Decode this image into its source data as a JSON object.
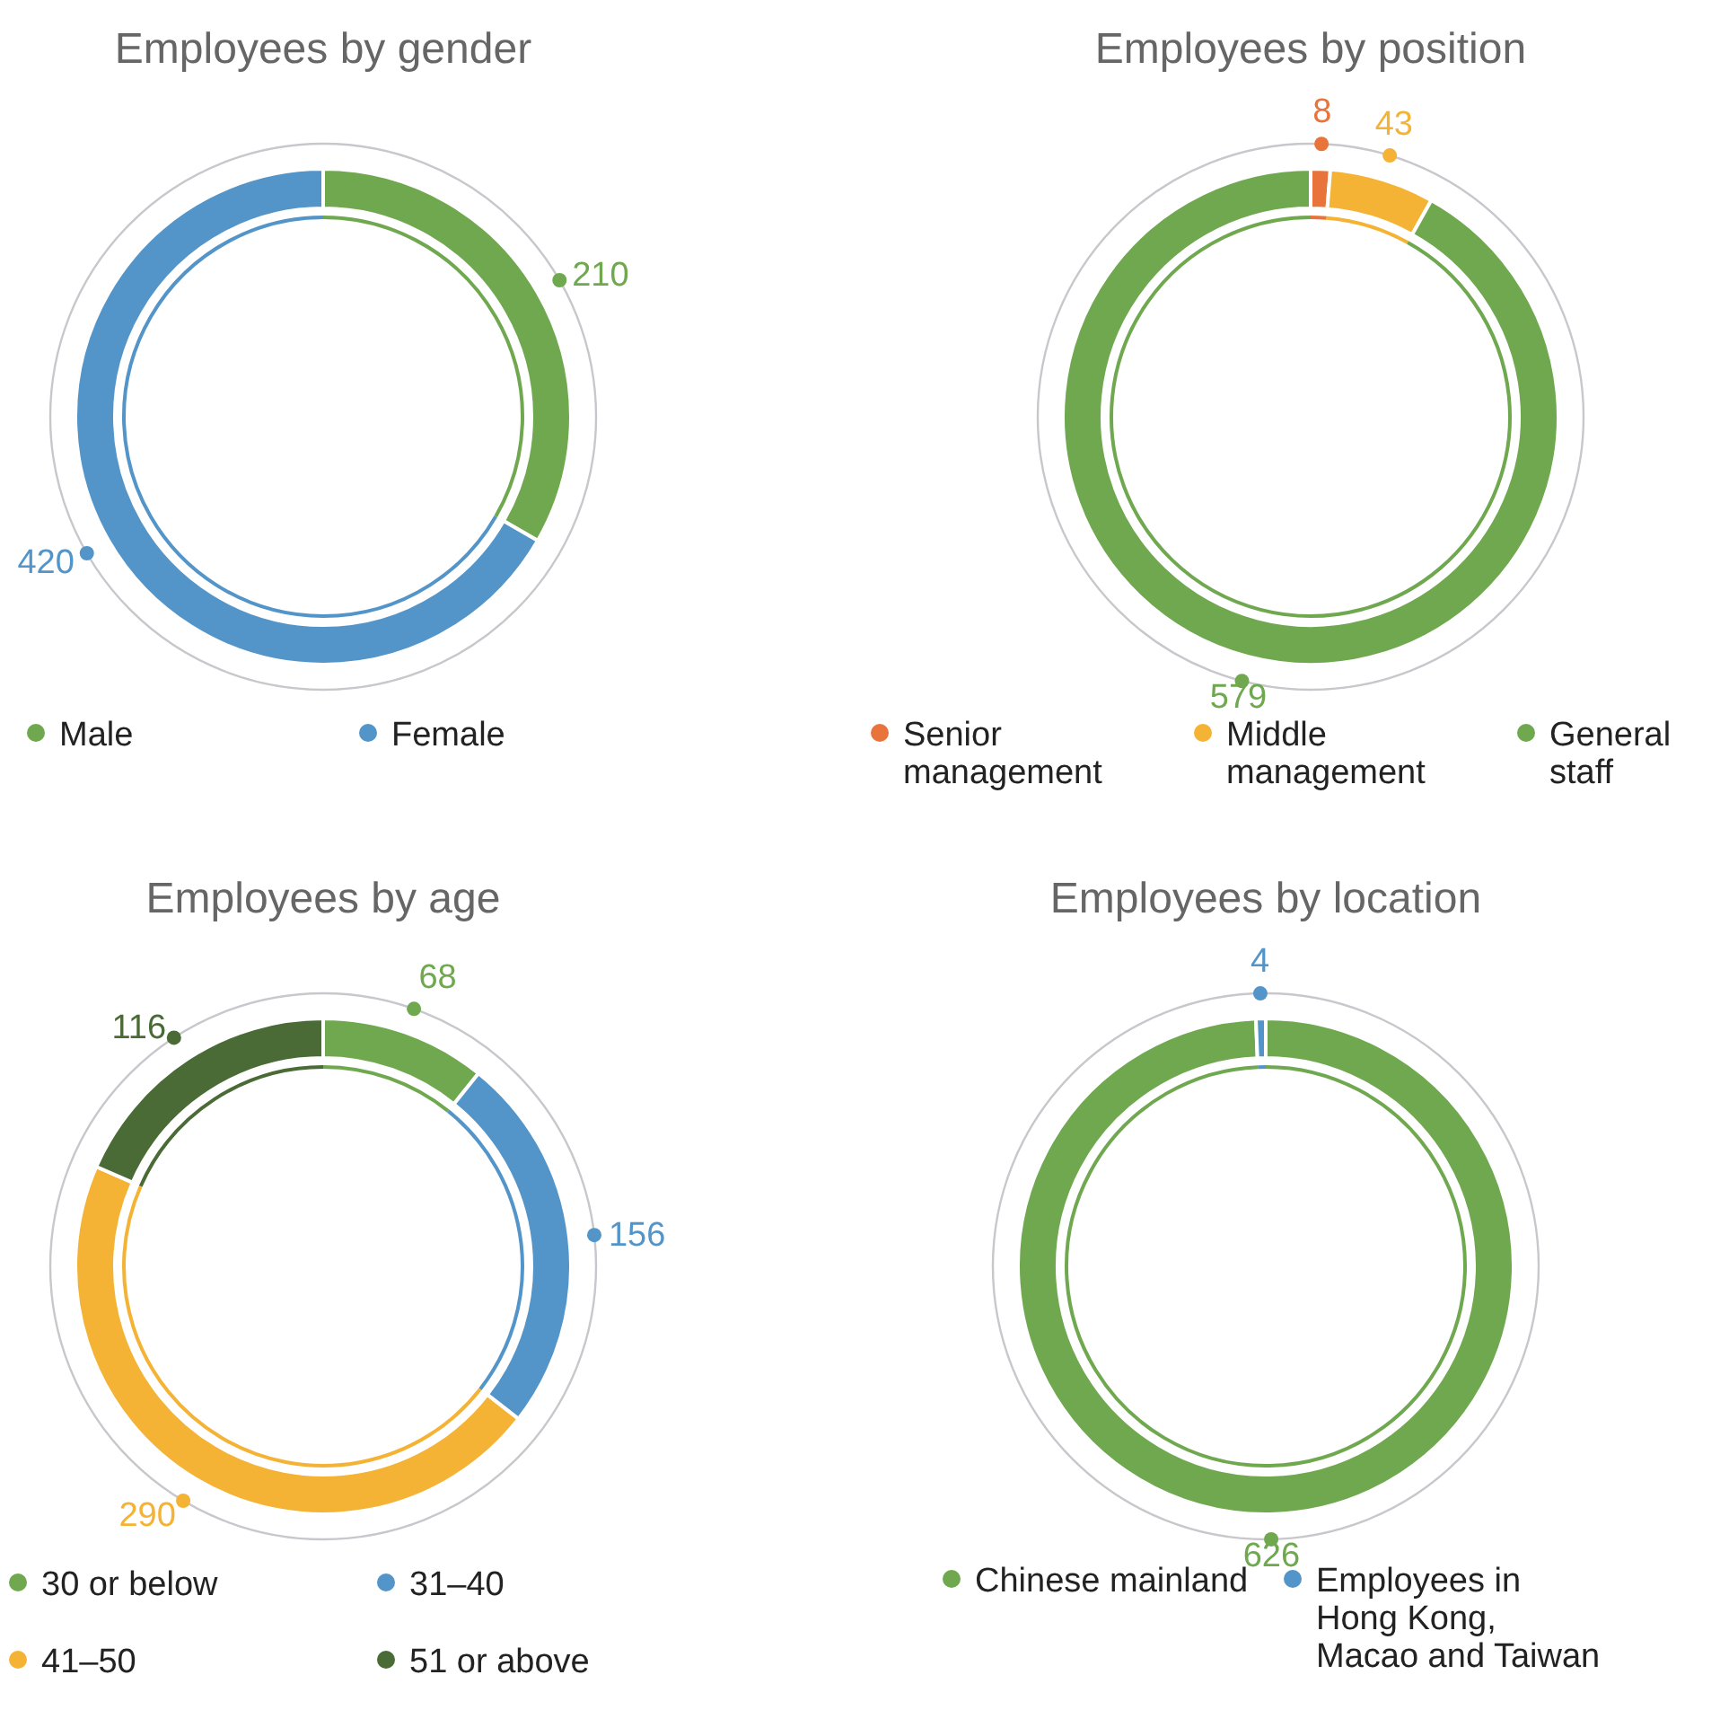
{
  "chart_data": [
    {
      "type": "donut",
      "title": "Employees by gender",
      "categories": [
        "Male",
        "Female"
      ],
      "values": [
        210,
        420
      ],
      "colors": [
        "#70a850",
        "#5495c9"
      ],
      "data_labels": true,
      "legend": "bottom"
    },
    {
      "type": "donut",
      "title": "Employees by position",
      "categories": [
        "Senior management",
        "Middle management",
        "General staff"
      ],
      "values": [
        8,
        43,
        579
      ],
      "colors": [
        "#e8743b",
        "#f5b335",
        "#70a850"
      ],
      "data_labels": true,
      "legend": "bottom"
    },
    {
      "type": "donut",
      "title": "Employees by age",
      "categories": [
        "30 or below",
        "31–40",
        "41–50",
        "51 or above"
      ],
      "values": [
        68,
        156,
        290,
        116
      ],
      "colors": [
        "#70a850",
        "#5495c9",
        "#f5b335",
        "#4a6b35"
      ],
      "data_labels": true,
      "legend": "bottom"
    },
    {
      "type": "donut",
      "title": "Employees by location",
      "categories": [
        "Chinese mainland",
        "Employees in Hong Kong, Macao and Taiwan"
      ],
      "values": [
        626,
        4
      ],
      "colors": [
        "#70a850",
        "#5495c9"
      ],
      "data_labels": true,
      "legend": "bottom"
    }
  ]
}
